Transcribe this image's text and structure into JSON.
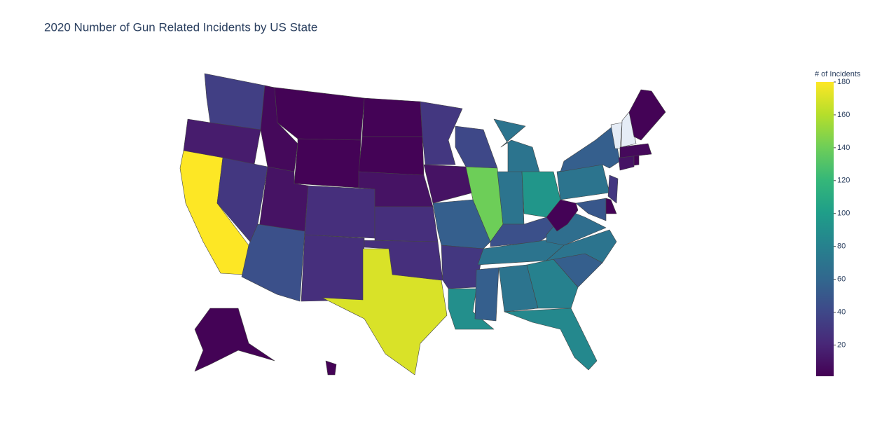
{
  "chart_data": {
    "type": "choropleth",
    "title": "2020 Number of Gun Related Incidents by US State",
    "colorbar_title": "# of Incidents",
    "colorscale": "viridis",
    "missing_color": "#e5ecf6",
    "values": [
      35,
      15,
      180,
      30,
      5,
      2,
      2,
      10,
      45,
      25,
      25,
      2,
      2,
      10,
      25,
      25,
      170,
      30,
      10,
      55,
      30,
      90,
      40,
      140,
      70,
      70,
      95,
      45,
      70,
      55,
      70,
      80,
      85,
      55,
      70,
      65,
      2,
      70,
      55,
      50,
      2,
      30,
      10,
      2,
      5,
      null,
      null,
      2,
      2,
      2
    ],
    "zlim": [
      1,
      180
    ],
    "zticks": [
      20,
      40,
      60,
      80,
      100,
      120,
      140,
      160,
      180
    ]
  }
}
